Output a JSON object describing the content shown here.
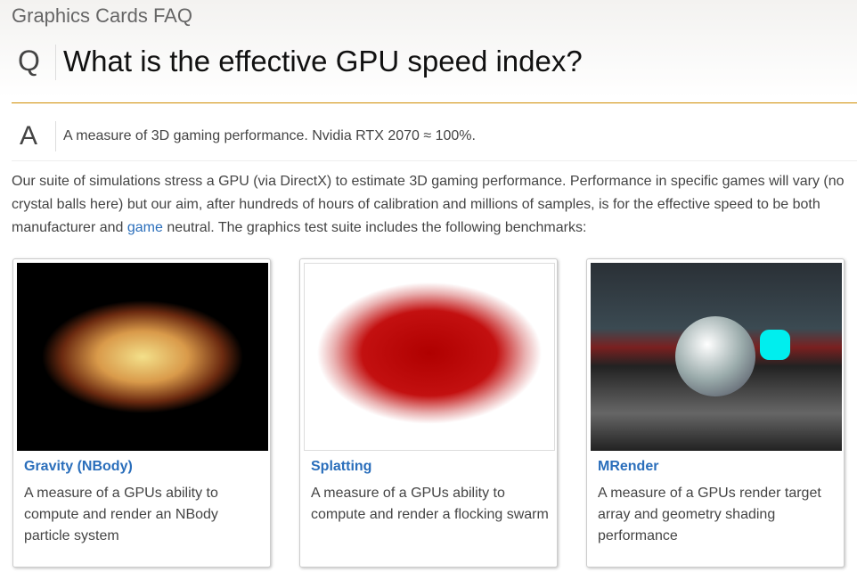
{
  "site_title": "Graphics Cards FAQ",
  "question": {
    "marker": "Q",
    "text": "What is the effective GPU speed index?"
  },
  "answer": {
    "marker": "A",
    "text": "A measure of 3D gaming performance. Nvidia RTX 2070 ≈ 100%."
  },
  "intro": {
    "part1": "Our suite of simulations stress a GPU (via DirectX) to estimate 3D gaming performance. Performance in specific games will vary (no crystal balls here) but our aim, after hundreds of hours of calibration and millions of samples, is for the effective speed to be both manufacturer and ",
    "link": "game",
    "part2": " neutral. The graphics test suite includes the following benchmarks:"
  },
  "cards": [
    {
      "title": "Gravity (NBody)",
      "desc": "A measure of a GPUs ability to compute and render an NBody particle system"
    },
    {
      "title": "Splatting",
      "desc": "A measure of a GPUs ability to compute and render a flocking swarm"
    },
    {
      "title": "MRender",
      "desc": "A measure of a GPUs render target array and geometry shading performance"
    }
  ],
  "colors": {
    "accent": "#d08c00",
    "link": "#2a6ebb"
  }
}
